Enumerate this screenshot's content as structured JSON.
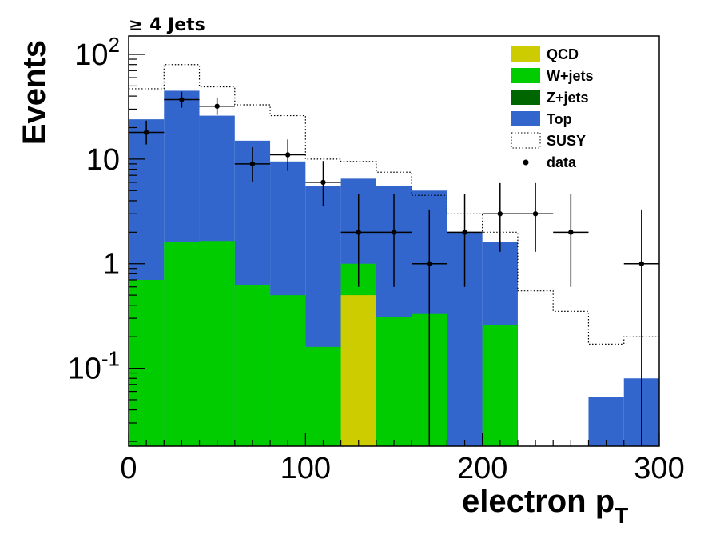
{
  "chart_data": {
    "type": "bar",
    "title": "≥ 4 Jets",
    "xlabel": "electron p",
    "xlabel_sub": "T",
    "ylabel": "Events",
    "xlim": [
      0,
      300
    ],
    "ylim": [
      0.018,
      150
    ],
    "yscale": "log",
    "grid": false,
    "legend_position": "top-right",
    "x_ticks": [
      {
        "value": 0,
        "label": "0"
      },
      {
        "value": 100,
        "label": "100"
      },
      {
        "value": 200,
        "label": "200"
      },
      {
        "value": 300,
        "label": "300"
      }
    ],
    "y_ticks": [
      {
        "value": 100,
        "base": "10",
        "exp": "2"
      },
      {
        "value": 10,
        "base": "10",
        "exp": ""
      },
      {
        "value": 1,
        "base": "1",
        "exp": ""
      },
      {
        "value": 0.1,
        "base": "10",
        "exp": "-1"
      }
    ],
    "bin_edges": [
      0,
      20,
      40,
      60,
      80,
      100,
      120,
      140,
      160,
      180,
      200,
      220,
      240,
      260,
      280,
      300
    ],
    "stack": [
      {
        "name": "QCD",
        "color": "#cccc00",
        "values": [
          0,
          0,
          0,
          0,
          0,
          0,
          0.5,
          0,
          0,
          0,
          0,
          0,
          0,
          0,
          0
        ]
      },
      {
        "name": "W+jets",
        "color": "#00cc00",
        "values": [
          0.7,
          1.6,
          1.65,
          0.62,
          0.5,
          0.16,
          0.5,
          0.31,
          0.33,
          0,
          0.26,
          0,
          0,
          0,
          0
        ]
      },
      {
        "name": "Z+jets",
        "color": "#006600",
        "values": [
          0,
          0,
          0,
          0,
          0,
          0,
          0,
          0,
          0,
          0,
          0,
          0,
          0,
          0,
          0
        ]
      },
      {
        "name": "Top",
        "color": "#3366cc",
        "values": [
          23.3,
          43.4,
          24.35,
          14.38,
          9,
          5.34,
          5.5,
          5.19,
          4.67,
          2,
          1.34,
          0,
          0,
          0.053,
          0.08
        ]
      }
    ],
    "susy_total": [
      47,
      80,
      49,
      33,
      26,
      10,
      9.5,
      7.5,
      4.5,
      3.0,
      2.0,
      0.55,
      0.35,
      0.17,
      0.2
    ],
    "data": [
      {
        "x": 10,
        "y": 18,
        "yerr_lo": 4.2,
        "yerr_hi": 5.3
      },
      {
        "x": 30,
        "y": 37,
        "yerr_lo": 6,
        "yerr_hi": 7
      },
      {
        "x": 50,
        "y": 32,
        "yerr_lo": 5.6,
        "yerr_hi": 6.6
      },
      {
        "x": 70,
        "y": 9,
        "yerr_lo": 2.9,
        "yerr_hi": 4
      },
      {
        "x": 90,
        "y": 11,
        "yerr_lo": 3.3,
        "yerr_hi": 4.4
      },
      {
        "x": 110,
        "y": 6,
        "yerr_lo": 2.4,
        "yerr_hi": 3.6
      },
      {
        "x": 130,
        "y": 2,
        "yerr_lo": 1.4,
        "yerr_hi": 2.6
      },
      {
        "x": 150,
        "y": 2,
        "yerr_lo": 1.4,
        "yerr_hi": 2.6
      },
      {
        "x": 170,
        "y": 1,
        "yerr_lo": 1,
        "yerr_hi": 2.3
      },
      {
        "x": 190,
        "y": 2,
        "yerr_lo": 1.4,
        "yerr_hi": 2.6
      },
      {
        "x": 210,
        "y": 3,
        "yerr_lo": 1.7,
        "yerr_hi": 2.9
      },
      {
        "x": 230,
        "y": 3,
        "yerr_lo": 1.7,
        "yerr_hi": 2.9
      },
      {
        "x": 250,
        "y": 2,
        "yerr_lo": 1.4,
        "yerr_hi": 2.6
      },
      {
        "x": 290,
        "y": 1,
        "yerr_lo": 1,
        "yerr_hi": 2.3
      }
    ],
    "legend": [
      {
        "label": "QCD",
        "kind": "fill",
        "color": "#cccc00"
      },
      {
        "label": "W+jets",
        "kind": "fill",
        "color": "#00cc00"
      },
      {
        "label": "Z+jets",
        "kind": "fill",
        "color": "#006600"
      },
      {
        "label": "Top",
        "kind": "fill",
        "color": "#3366cc"
      },
      {
        "label": "SUSY",
        "kind": "dotted-box",
        "color": "#000000"
      },
      {
        "label": "data",
        "kind": "marker",
        "color": "#000000"
      }
    ]
  }
}
